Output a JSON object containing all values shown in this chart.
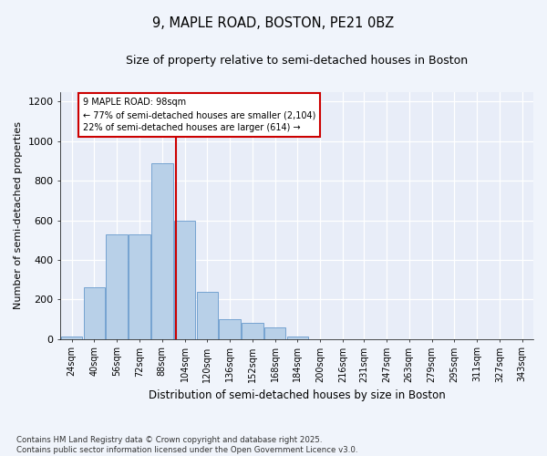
{
  "title_line1": "9, MAPLE ROAD, BOSTON, PE21 0BZ",
  "title_line2": "Size of property relative to semi-detached houses in Boston",
  "xlabel": "Distribution of semi-detached houses by size in Boston",
  "ylabel": "Number of semi-detached properties",
  "footnote": "Contains HM Land Registry data © Crown copyright and database right 2025.\nContains public sector information licensed under the Open Government Licence v3.0.",
  "bin_labels": [
    "24sqm",
    "40sqm",
    "56sqm",
    "72sqm",
    "88sqm",
    "104sqm",
    "120sqm",
    "136sqm",
    "152sqm",
    "168sqm",
    "184sqm",
    "200sqm",
    "216sqm",
    "231sqm",
    "247sqm",
    "263sqm",
    "279sqm",
    "295sqm",
    "311sqm",
    "327sqm",
    "343sqm"
  ],
  "bin_left": [
    16,
    32,
    48,
    64,
    80,
    96,
    112,
    128,
    144,
    160,
    176,
    192,
    208,
    223,
    239,
    255,
    271,
    287,
    303,
    319,
    335
  ],
  "bin_width": 16,
  "bar_values": [
    10,
    260,
    530,
    530,
    890,
    600,
    240,
    100,
    80,
    60,
    10,
    0,
    0,
    0,
    0,
    0,
    0,
    0,
    0,
    0,
    0
  ],
  "bar_color": "#b8d0e8",
  "bar_edge_color": "#6699cc",
  "property_size": 98,
  "vline_color": "#cc0000",
  "annotation_text": "9 MAPLE ROAD: 98sqm\n← 77% of semi-detached houses are smaller (2,104)\n22% of semi-detached houses are larger (614) →",
  "annotation_box_color": "#cc0000",
  "plot_bg_color": "#e8edf8",
  "fig_bg_color": "#f0f4fb",
  "ylim": [
    0,
    1250
  ],
  "xlim": [
    16,
    351
  ],
  "yticks": [
    0,
    200,
    400,
    600,
    800,
    1000,
    1200
  ]
}
